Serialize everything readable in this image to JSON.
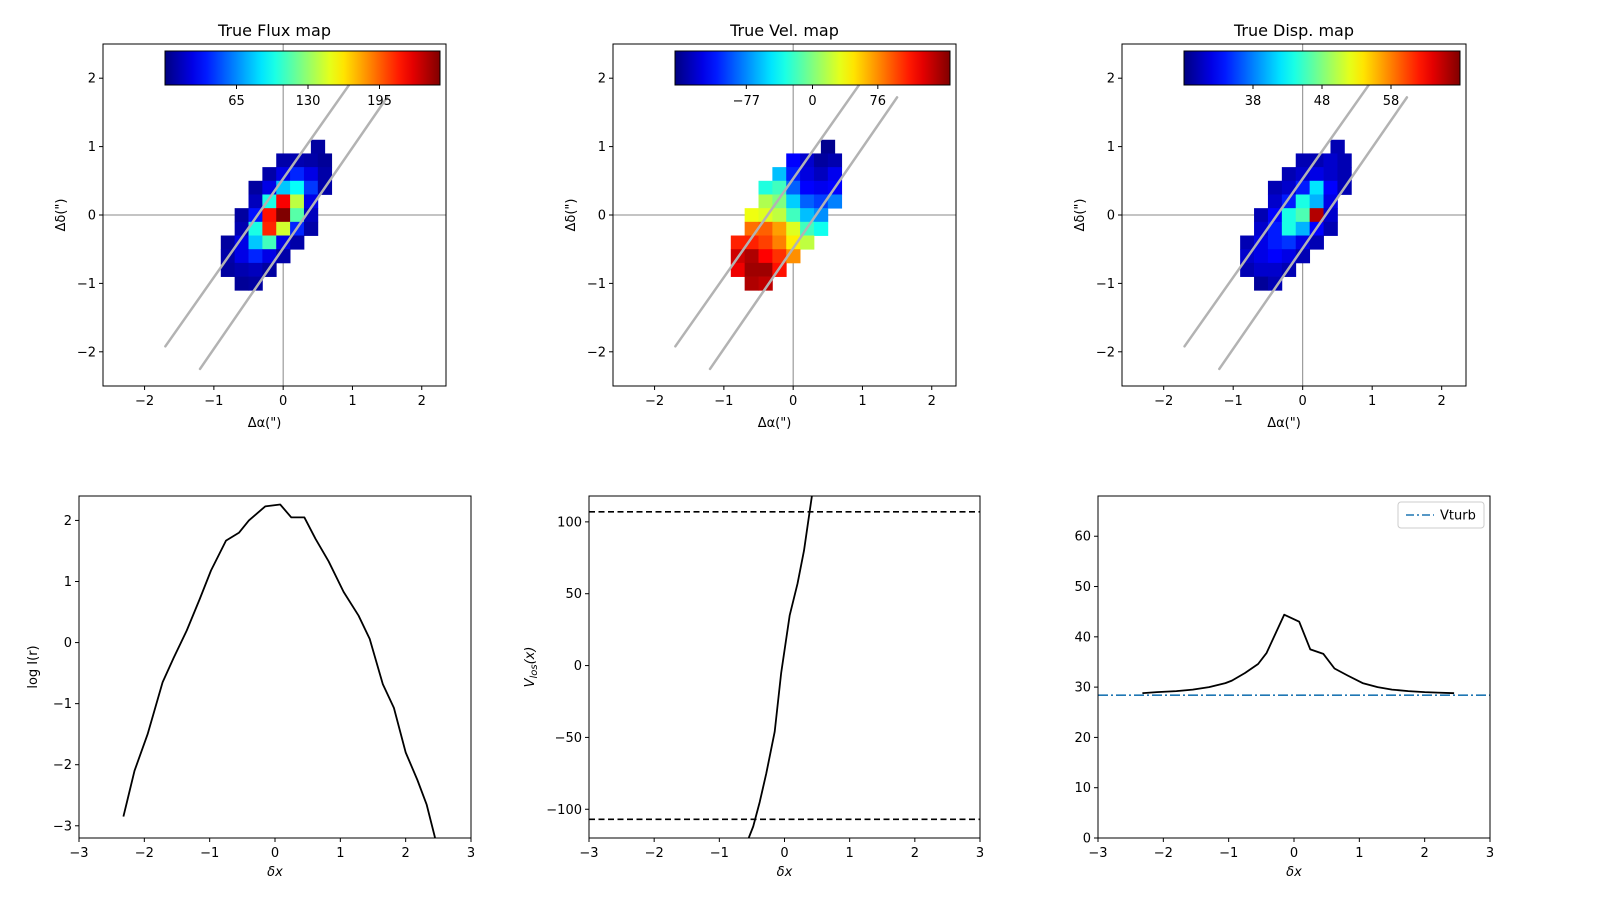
{
  "chart_data": [
    {
      "type": "heatmap",
      "title": "True Flux map",
      "xlabel": "Δα(\")",
      "ylabel": "Δδ(\")",
      "xlim": [
        -2.6,
        2.35
      ],
      "ylim": [
        -2.5,
        2.5
      ],
      "xticks": [
        "−2",
        "−1",
        "0",
        "1",
        "2"
      ],
      "yticks": [
        "−2",
        "−1",
        "0",
        "1",
        "2"
      ],
      "colorbar": {
        "colormap": "jet",
        "range": [
          0,
          250
        ],
        "ticks": [
          65,
          130,
          195
        ],
        "tick_labels": [
          "65",
          "130",
          "195"
        ]
      },
      "pixel_size": 0.2,
      "pixels": [
        {
          "x": 0.5,
          "y": 1.0,
          "v": 8
        },
        {
          "x": 0.0,
          "y": 0.8,
          "v": 10
        },
        {
          "x": 0.2,
          "y": 0.8,
          "v": 12
        },
        {
          "x": 0.4,
          "y": 0.8,
          "v": 10
        },
        {
          "x": 0.6,
          "y": 0.8,
          "v": 6
        },
        {
          "x": -0.2,
          "y": 0.6,
          "v": 10
        },
        {
          "x": 0.0,
          "y": 0.6,
          "v": 25
        },
        {
          "x": 0.2,
          "y": 0.6,
          "v": 40
        },
        {
          "x": 0.4,
          "y": 0.6,
          "v": 25
        },
        {
          "x": 0.6,
          "y": 0.6,
          "v": 10
        },
        {
          "x": -0.4,
          "y": 0.4,
          "v": 8
        },
        {
          "x": -0.2,
          "y": 0.4,
          "v": 25
        },
        {
          "x": 0.0,
          "y": 0.4,
          "v": 80
        },
        {
          "x": 0.2,
          "y": 0.4,
          "v": 95
        },
        {
          "x": 0.4,
          "y": 0.4,
          "v": 45
        },
        {
          "x": 0.6,
          "y": 0.4,
          "v": 10
        },
        {
          "x": -0.4,
          "y": 0.2,
          "v": 15
        },
        {
          "x": -0.2,
          "y": 0.2,
          "v": 100
        },
        {
          "x": 0.0,
          "y": 0.2,
          "v": 220
        },
        {
          "x": 0.2,
          "y": 0.2,
          "v": 140
        },
        {
          "x": 0.4,
          "y": 0.2,
          "v": 25
        },
        {
          "x": -0.6,
          "y": 0.0,
          "v": 8
        },
        {
          "x": -0.4,
          "y": 0.0,
          "v": 35
        },
        {
          "x": -0.2,
          "y": 0.0,
          "v": 215
        },
        {
          "x": 0.0,
          "y": 0.0,
          "v": 250
        },
        {
          "x": 0.2,
          "y": 0.0,
          "v": 115
        },
        {
          "x": 0.4,
          "y": 0.0,
          "v": 15
        },
        {
          "x": -0.6,
          "y": -0.2,
          "v": 12
        },
        {
          "x": -0.4,
          "y": -0.2,
          "v": 100
        },
        {
          "x": -0.2,
          "y": -0.2,
          "v": 210
        },
        {
          "x": 0.0,
          "y": -0.2,
          "v": 145
        },
        {
          "x": 0.2,
          "y": -0.2,
          "v": 40
        },
        {
          "x": 0.4,
          "y": -0.2,
          "v": 10
        },
        {
          "x": -0.8,
          "y": -0.4,
          "v": 8
        },
        {
          "x": -0.6,
          "y": -0.4,
          "v": 25
        },
        {
          "x": -0.4,
          "y": -0.4,
          "v": 80
        },
        {
          "x": -0.2,
          "y": -0.4,
          "v": 110
        },
        {
          "x": 0.0,
          "y": -0.4,
          "v": 25
        },
        {
          "x": 0.2,
          "y": -0.4,
          "v": 10
        },
        {
          "x": -0.8,
          "y": -0.6,
          "v": 10
        },
        {
          "x": -0.6,
          "y": -0.6,
          "v": 25
        },
        {
          "x": -0.4,
          "y": -0.6,
          "v": 40
        },
        {
          "x": -0.2,
          "y": -0.6,
          "v": 25
        },
        {
          "x": 0.0,
          "y": -0.6,
          "v": 10
        },
        {
          "x": -0.8,
          "y": -0.8,
          "v": 8
        },
        {
          "x": -0.6,
          "y": -0.8,
          "v": 12
        },
        {
          "x": -0.4,
          "y": -0.8,
          "v": 15
        },
        {
          "x": -0.2,
          "y": -0.8,
          "v": 8
        },
        {
          "x": -0.6,
          "y": -1.0,
          "v": 6
        },
        {
          "x": -0.4,
          "y": -1.0,
          "v": 8
        }
      ],
      "slit_lines": [
        {
          "x": [
            -1.7,
            0.95
          ],
          "y": [
            -1.92,
            1.9
          ]
        },
        {
          "x": [
            -1.2,
            1.5
          ],
          "y": [
            -2.25,
            1.72
          ]
        }
      ],
      "grid": false
    },
    {
      "type": "heatmap",
      "title": "True Vel. map",
      "xlabel": "Δα(\")",
      "ylabel": "Δδ(\")",
      "xlim": [
        -2.6,
        2.35
      ],
      "ylim": [
        -2.5,
        2.5
      ],
      "xticks": [
        "−2",
        "−1",
        "0",
        "1",
        "2"
      ],
      "yticks": [
        "−2",
        "−1",
        "0",
        "1",
        "2"
      ],
      "colorbar": {
        "colormap": "jet",
        "range": [
          -160,
          160
        ],
        "ticks": [
          -77,
          0,
          76
        ],
        "tick_labels": [
          "−77",
          "0",
          "76"
        ]
      },
      "pixel_size": 0.2,
      "pixels": [
        {
          "x": 0.5,
          "y": 1.0,
          "v": -155
        },
        {
          "x": 0.0,
          "y": 0.8,
          "v": -120
        },
        {
          "x": 0.2,
          "y": 0.8,
          "v": -135
        },
        {
          "x": 0.4,
          "y": 0.8,
          "v": -150
        },
        {
          "x": 0.6,
          "y": 0.8,
          "v": -145
        },
        {
          "x": -0.2,
          "y": 0.6,
          "v": -60
        },
        {
          "x": 0.0,
          "y": 0.6,
          "v": -110
        },
        {
          "x": 0.2,
          "y": 0.6,
          "v": -130
        },
        {
          "x": 0.4,
          "y": 0.6,
          "v": -140
        },
        {
          "x": 0.6,
          "y": 0.6,
          "v": -125
        },
        {
          "x": -0.4,
          "y": 0.4,
          "v": -30
        },
        {
          "x": -0.2,
          "y": 0.4,
          "v": -20
        },
        {
          "x": 0.0,
          "y": 0.4,
          "v": -90
        },
        {
          "x": 0.2,
          "y": 0.4,
          "v": -120
        },
        {
          "x": 0.4,
          "y": 0.4,
          "v": -125
        },
        {
          "x": 0.6,
          "y": 0.4,
          "v": -120
        },
        {
          "x": -0.4,
          "y": 0.2,
          "v": 15
        },
        {
          "x": -0.2,
          "y": 0.2,
          "v": 0
        },
        {
          "x": 0.0,
          "y": 0.2,
          "v": -55
        },
        {
          "x": 0.2,
          "y": 0.2,
          "v": -90
        },
        {
          "x": 0.4,
          "y": 0.2,
          "v": -100
        },
        {
          "x": 0.6,
          "y": 0.2,
          "v": -80
        },
        {
          "x": -0.6,
          "y": 0.0,
          "v": 35
        },
        {
          "x": -0.4,
          "y": 0.0,
          "v": 30
        },
        {
          "x": -0.2,
          "y": 0.0,
          "v": 20
        },
        {
          "x": 0.0,
          "y": 0.0,
          "v": -20
        },
        {
          "x": 0.2,
          "y": 0.0,
          "v": -60
        },
        {
          "x": 0.4,
          "y": 0.0,
          "v": -75
        },
        {
          "x": -0.6,
          "y": -0.2,
          "v": 85
        },
        {
          "x": -0.4,
          "y": -0.2,
          "v": 90
        },
        {
          "x": -0.2,
          "y": -0.2,
          "v": 70
        },
        {
          "x": 0.0,
          "y": -0.2,
          "v": 30
        },
        {
          "x": 0.2,
          "y": -0.2,
          "v": -20
        },
        {
          "x": 0.4,
          "y": -0.2,
          "v": -35
        },
        {
          "x": -0.8,
          "y": -0.4,
          "v": 110
        },
        {
          "x": -0.6,
          "y": -0.4,
          "v": 110
        },
        {
          "x": -0.4,
          "y": -0.4,
          "v": 100
        },
        {
          "x": -0.2,
          "y": -0.4,
          "v": 80
        },
        {
          "x": 0.0,
          "y": -0.4,
          "v": 45
        },
        {
          "x": 0.2,
          "y": -0.4,
          "v": 20
        },
        {
          "x": -0.8,
          "y": -0.6,
          "v": 135
        },
        {
          "x": -0.6,
          "y": -0.6,
          "v": 145
        },
        {
          "x": -0.4,
          "y": -0.6,
          "v": 120
        },
        {
          "x": -0.2,
          "y": -0.6,
          "v": 105
        },
        {
          "x": 0.0,
          "y": -0.6,
          "v": 75
        },
        {
          "x": -0.8,
          "y": -0.8,
          "v": 125
        },
        {
          "x": -0.6,
          "y": -0.8,
          "v": 150
        },
        {
          "x": -0.4,
          "y": -0.8,
          "v": 150
        },
        {
          "x": -0.2,
          "y": -0.8,
          "v": 115
        },
        {
          "x": -0.6,
          "y": -1.0,
          "v": 145
        },
        {
          "x": -0.4,
          "y": -1.0,
          "v": 140
        }
      ],
      "slit_lines": [
        {
          "x": [
            -1.7,
            0.95
          ],
          "y": [
            -1.92,
            1.9
          ]
        },
        {
          "x": [
            -1.2,
            1.5
          ],
          "y": [
            -2.25,
            1.72
          ]
        }
      ],
      "grid": false
    },
    {
      "type": "heatmap",
      "title": "True Disp. map",
      "xlabel": "Δα(\")",
      "ylabel": "Δδ(\")",
      "xlim": [
        -2.6,
        2.35
      ],
      "ylim": [
        -2.5,
        2.5
      ],
      "xticks": [
        "−2",
        "−1",
        "0",
        "1",
        "2"
      ],
      "yticks": [
        "−2",
        "−1",
        "0",
        "1",
        "2"
      ],
      "colorbar": {
        "colormap": "jet",
        "range": [
          28,
          68
        ],
        "ticks": [
          38,
          48,
          58
        ],
        "tick_labels": [
          "38",
          "48",
          "58"
        ]
      },
      "pixel_size": 0.2,
      "pixels": [
        {
          "x": 0.5,
          "y": 1.0,
          "v": 30
        },
        {
          "x": 0.0,
          "y": 0.8,
          "v": 30
        },
        {
          "x": 0.2,
          "y": 0.8,
          "v": 30
        },
        {
          "x": 0.4,
          "y": 0.8,
          "v": 31
        },
        {
          "x": 0.6,
          "y": 0.8,
          "v": 30
        },
        {
          "x": -0.2,
          "y": 0.6,
          "v": 30
        },
        {
          "x": 0.0,
          "y": 0.6,
          "v": 31
        },
        {
          "x": 0.2,
          "y": 0.6,
          "v": 32
        },
        {
          "x": 0.4,
          "y": 0.6,
          "v": 31
        },
        {
          "x": 0.6,
          "y": 0.6,
          "v": 30
        },
        {
          "x": -0.4,
          "y": 0.4,
          "v": 30
        },
        {
          "x": -0.2,
          "y": 0.4,
          "v": 31
        },
        {
          "x": 0.0,
          "y": 0.4,
          "v": 34
        },
        {
          "x": 0.2,
          "y": 0.4,
          "v": 42
        },
        {
          "x": 0.4,
          "y": 0.4,
          "v": 33
        },
        {
          "x": 0.6,
          "y": 0.4,
          "v": 30
        },
        {
          "x": -0.4,
          "y": 0.2,
          "v": 31
        },
        {
          "x": -0.2,
          "y": 0.2,
          "v": 34
        },
        {
          "x": 0.0,
          "y": 0.2,
          "v": 44
        },
        {
          "x": 0.2,
          "y": 0.2,
          "v": 40
        },
        {
          "x": 0.4,
          "y": 0.2,
          "v": 32
        },
        {
          "x": -0.6,
          "y": 0.0,
          "v": 30
        },
        {
          "x": -0.4,
          "y": 0.0,
          "v": 33
        },
        {
          "x": -0.2,
          "y": 0.0,
          "v": 44
        },
        {
          "x": 0.0,
          "y": 0.0,
          "v": 46
        },
        {
          "x": 0.2,
          "y": 0.0,
          "v": 66
        },
        {
          "x": 0.4,
          "y": 0.0,
          "v": 31
        },
        {
          "x": -0.6,
          "y": -0.2,
          "v": 31
        },
        {
          "x": -0.4,
          "y": -0.2,
          "v": 34
        },
        {
          "x": -0.2,
          "y": -0.2,
          "v": 44
        },
        {
          "x": 0.0,
          "y": -0.2,
          "v": 40
        },
        {
          "x": 0.2,
          "y": -0.2,
          "v": 33
        },
        {
          "x": 0.4,
          "y": -0.2,
          "v": 30
        },
        {
          "x": -0.8,
          "y": -0.4,
          "v": 30
        },
        {
          "x": -0.6,
          "y": -0.4,
          "v": 32
        },
        {
          "x": -0.4,
          "y": -0.4,
          "v": 34
        },
        {
          "x": -0.2,
          "y": -0.4,
          "v": 35
        },
        {
          "x": 0.0,
          "y": -0.4,
          "v": 32
        },
        {
          "x": 0.2,
          "y": -0.4,
          "v": 30
        },
        {
          "x": -0.8,
          "y": -0.6,
          "v": 31
        },
        {
          "x": -0.6,
          "y": -0.6,
          "v": 32
        },
        {
          "x": -0.4,
          "y": -0.6,
          "v": 33
        },
        {
          "x": -0.2,
          "y": -0.6,
          "v": 32
        },
        {
          "x": 0.0,
          "y": -0.6,
          "v": 30
        },
        {
          "x": -0.8,
          "y": -0.8,
          "v": 30
        },
        {
          "x": -0.6,
          "y": -0.8,
          "v": 31
        },
        {
          "x": -0.4,
          "y": -0.8,
          "v": 31
        },
        {
          "x": -0.2,
          "y": -0.8,
          "v": 30
        },
        {
          "x": -0.6,
          "y": -1.0,
          "v": 29
        },
        {
          "x": -0.4,
          "y": -1.0,
          "v": 30
        }
      ],
      "slit_lines": [
        {
          "x": [
            -1.7,
            0.95
          ],
          "y": [
            -1.92,
            1.9
          ]
        },
        {
          "x": [
            -1.2,
            1.5
          ],
          "y": [
            -2.25,
            1.72
          ]
        }
      ],
      "grid": false
    },
    {
      "type": "line",
      "title": "",
      "xlabel": "δx",
      "ylabel": "log I(r)",
      "xlim": [
        -3,
        3
      ],
      "ylim": [
        -3.2,
        2.4
      ],
      "xticks": [
        "−3",
        "−2",
        "−1",
        "0",
        "1",
        "2",
        "3"
      ],
      "yticks": [
        "−3",
        "−2",
        "−1",
        "0",
        "1",
        "2"
      ],
      "series": [
        {
          "color": "#000000",
          "x": [
            -2.32,
            -2.15,
            -1.95,
            -1.72,
            -1.55,
            -1.35,
            -1.15,
            -0.98,
            -0.75,
            -0.55,
            -0.4,
            -0.15,
            0.08,
            0.25,
            0.45,
            0.62,
            0.82,
            1.05,
            1.28,
            1.45,
            1.65,
            1.82,
            2.0,
            2.18,
            2.32,
            2.45
          ],
          "y": [
            -2.85,
            -2.1,
            -1.5,
            -0.65,
            -0.25,
            0.2,
            0.72,
            1.18,
            1.67,
            1.8,
            2.0,
            2.23,
            2.26,
            2.05,
            2.05,
            1.7,
            1.33,
            0.83,
            0.44,
            0.06,
            -0.68,
            -1.07,
            -1.8,
            -2.25,
            -2.65,
            -3.2
          ]
        }
      ],
      "grid": false
    },
    {
      "type": "line",
      "title": "",
      "xlabel": "δx",
      "ylabel": "V_los(x)",
      "xlim": [
        -3,
        3
      ],
      "ylim": [
        -120,
        118
      ],
      "xticks": [
        "−3",
        "−2",
        "−1",
        "0",
        "1",
        "2",
        "3"
      ],
      "yticks": [
        "−100",
        "−50",
        "0",
        "50",
        "100"
      ],
      "series": [
        {
          "color": "#000000",
          "x": [
            -0.55,
            -0.48,
            -0.38,
            -0.28,
            -0.15,
            -0.05,
            0.08,
            0.2,
            0.3,
            0.42
          ],
          "y": [
            -120,
            -112,
            -95,
            -75,
            -46,
            -5,
            35,
            57,
            80,
            118
          ]
        }
      ],
      "hlines": [
        {
          "y": 107,
          "style": "dashed",
          "color": "#000000"
        },
        {
          "y": -107,
          "style": "dashed",
          "color": "#000000"
        }
      ],
      "grid": false
    },
    {
      "type": "line",
      "title": "",
      "xlabel": "δx",
      "ylabel": "",
      "xlim": [
        -3,
        3
      ],
      "ylim": [
        0,
        68
      ],
      "xticks": [
        "−3",
        "−2",
        "−1",
        "0",
        "1",
        "2",
        "3"
      ],
      "yticks": [
        "0",
        "10",
        "20",
        "30",
        "40",
        "50",
        "60"
      ],
      "series": [
        {
          "color": "#000000",
          "x": [
            -2.32,
            -2.1,
            -1.8,
            -1.55,
            -1.3,
            -1.05,
            -0.95,
            -0.75,
            -0.55,
            -0.42,
            -0.15,
            0.08,
            0.25,
            0.45,
            0.62,
            0.82,
            1.05,
            1.28,
            1.5,
            1.75,
            2.0,
            2.2,
            2.45
          ],
          "y": [
            28.8,
            29.0,
            29.2,
            29.5,
            30.0,
            30.8,
            31.3,
            32.8,
            34.6,
            36.8,
            44.4,
            43.0,
            37.5,
            36.6,
            33.7,
            32.3,
            30.8,
            30.0,
            29.5,
            29.2,
            29.0,
            28.9,
            28.8
          ]
        }
      ],
      "hlines": [
        {
          "y": 28.4,
          "style": "dashdot",
          "color": "#1f77b4",
          "name": "Vturb"
        }
      ],
      "legend": {
        "position": "top-right",
        "entries": [
          "Vturb"
        ]
      },
      "grid": false
    }
  ]
}
